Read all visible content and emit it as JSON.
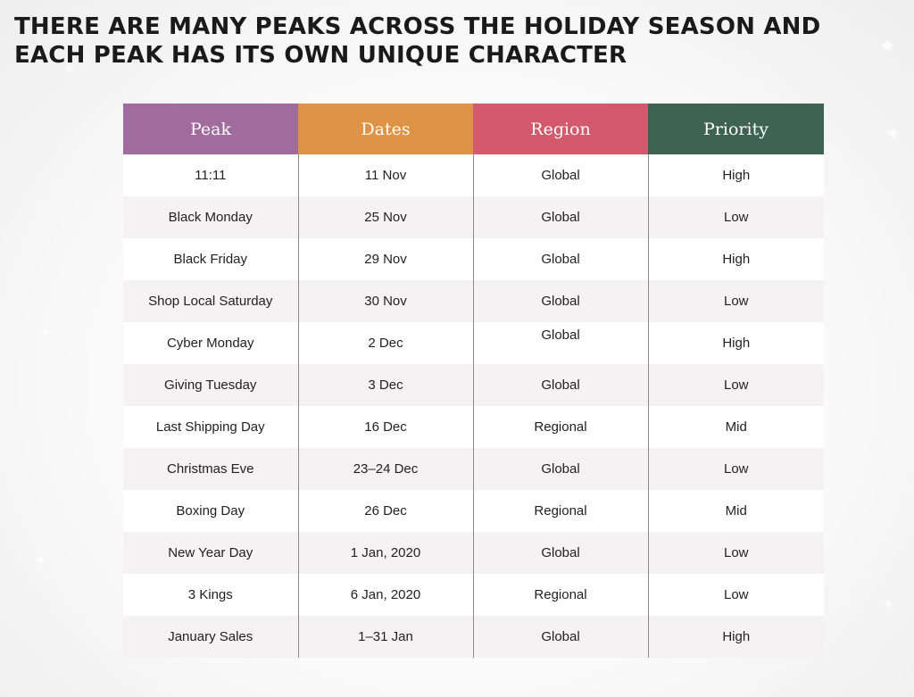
{
  "title_line1": "THERE ARE MANY PEAKS ACROSS THE HOLIDAY SEASON AND",
  "title_line2": "EACH PEAK HAS ITS OWN UNIQUE CHARACTER",
  "colors": {
    "peak_header": "#a06c9e",
    "dates_header": "#de9346",
    "region_header": "#d25a6c",
    "priority_header": "#3f6352"
  },
  "headers": {
    "peak": "Peak",
    "dates": "Dates",
    "region": "Region",
    "priority": "Priority"
  },
  "rows": [
    {
      "peak": "11:11",
      "dates": "11 Nov",
      "region": "Global",
      "priority": "High"
    },
    {
      "peak": "Black Monday",
      "dates": "25 Nov",
      "region": "Global",
      "priority": "Low"
    },
    {
      "peak": "Black Friday",
      "dates": "29 Nov",
      "region": "Global",
      "priority": "High"
    },
    {
      "peak": "Shop Local Saturday",
      "dates": "30 Nov",
      "region": "Global",
      "priority": "Low"
    },
    {
      "peak": "Cyber Monday",
      "dates": "2 Dec",
      "region": "Global",
      "priority": "High"
    },
    {
      "peak": "Giving Tuesday",
      "dates": "3 Dec",
      "region": "Global",
      "priority": "Low"
    },
    {
      "peak": "Last Shipping Day",
      "dates": "16 Dec",
      "region": "Regional",
      "priority": "Mid"
    },
    {
      "peak": "Christmas Eve",
      "dates": "23–24 Dec",
      "region": "Global",
      "priority": "Low"
    },
    {
      "peak": "Boxing Day",
      "dates": "26 Dec",
      "region": "Regional",
      "priority": "Mid"
    },
    {
      "peak": "New Year Day",
      "dates": "1 Jan, 2020",
      "region": "Global",
      "priority": "Low"
    },
    {
      "peak": "3 Kings",
      "dates": "6 Jan, 2020",
      "region": "Regional",
      "priority": "Low"
    },
    {
      "peak": "January Sales",
      "dates": "1–31 Jan",
      "region": "Global",
      "priority": "High"
    }
  ]
}
